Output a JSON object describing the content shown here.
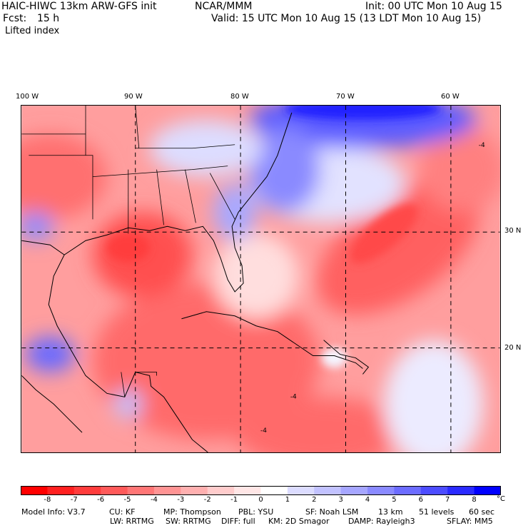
{
  "header": {
    "model_line": "HAIC-HIWC 13km ARW-GFS init",
    "org": "NCAR/MMM",
    "init": "Init: 00 UTC Mon 10 Aug 15",
    "fcst_label": "Fcst:",
    "fcst_value": "15 h",
    "valid": "Valid: 15 UTC Mon 10 Aug 15 (13 LDT Mon 10 Aug 15)",
    "field": "Lifted index"
  },
  "map": {
    "lon_labels": [
      "100 W",
      "90 W",
      "80 W",
      "70 W",
      "60 W"
    ],
    "lat_labels": [
      "30 N",
      "20 N"
    ]
  },
  "colorbar": {
    "tick_labels": [
      "-8",
      "-7",
      "-6",
      "-5",
      "-4",
      "-3",
      "-2",
      "-1",
      "0",
      "1",
      "2",
      "3",
      "4",
      "5",
      "6",
      "7",
      "8"
    ],
    "unit": "°C",
    "colors": [
      "#ff0000",
      "#ff2020",
      "#ff3c3c",
      "#ff5a5a",
      "#ff7676",
      "#ff9494",
      "#ffb0b0",
      "#ffcccc",
      "#ffe6e6",
      "#ffffff",
      "#dcdcff",
      "#c2c2ff",
      "#a6a6ff",
      "#8a8aff",
      "#6c6cff",
      "#4c4cff",
      "#2a2aff",
      "#0000ff"
    ]
  },
  "footer": {
    "line1": [
      "Model Info: V3.7",
      "CU: KF",
      "MP: Thompson",
      "PBL: YSU",
      "SF: Noah LSM",
      "13 km",
      "51 levels",
      "60 sec"
    ],
    "line2": [
      "LW: RRTMG",
      "SW: RRTMG",
      "DIFF: full",
      "KM: 2D Smagor",
      "DAMP: Rayleigh3",
      "SFLAY: MM5"
    ]
  }
}
